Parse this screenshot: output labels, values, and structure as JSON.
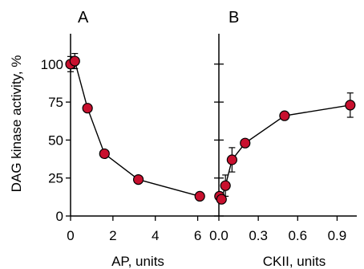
{
  "chart_data": [
    {
      "type": "line",
      "panel_label": "A",
      "xlabel": "AP, units",
      "ylabel": "DAG kinase activity, %",
      "xlim": [
        0,
        7
      ],
      "ylim": [
        0,
        120
      ],
      "xticks": [
        0,
        2,
        4,
        6
      ],
      "xtick_labels": [
        "0",
        "2",
        "4",
        "6"
      ],
      "yticks": [
        0,
        25,
        50,
        75,
        100
      ],
      "ytick_labels": [
        "0",
        "25",
        "50",
        "75",
        "100"
      ],
      "grid": false,
      "marker_color": "#c8102e",
      "series": [
        {
          "x": [
            0,
            0.2,
            0.8,
            1.6,
            3.2,
            6.1
          ],
          "y": [
            100,
            102,
            71,
            41,
            24,
            13
          ],
          "err": [
            5,
            5,
            0,
            0,
            0,
            0
          ]
        }
      ]
    },
    {
      "type": "line",
      "panel_label": "B",
      "xlabel": "CKII, units",
      "ylabel": "",
      "xlim": [
        0,
        1.05
      ],
      "ylim": [
        0,
        120
      ],
      "xticks": [
        0,
        0.3,
        0.6,
        0.9
      ],
      "xtick_labels": [
        "0.0",
        "0.3",
        "0.6",
        "0.9"
      ],
      "yticks": [
        0,
        25,
        50,
        75,
        100
      ],
      "grid": false,
      "marker_color": "#c8102e",
      "series": [
        {
          "x": [
            0.005,
            0.02,
            0.05,
            0.1,
            0.2,
            0.5,
            1.0
          ],
          "y": [
            13,
            11,
            20,
            37,
            48,
            66,
            73
          ],
          "err": [
            2,
            0,
            7,
            8,
            0,
            0,
            8
          ]
        }
      ]
    }
  ]
}
